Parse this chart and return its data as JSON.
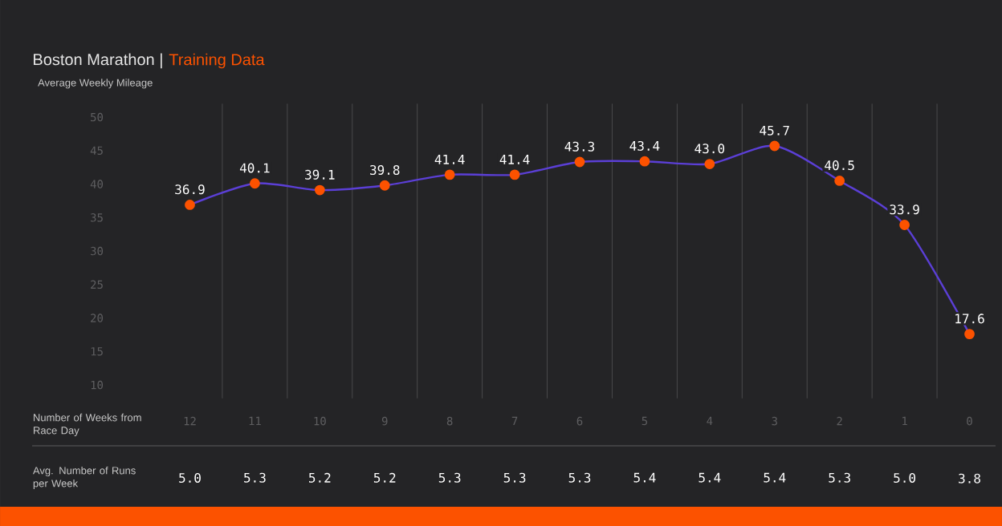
{
  "chart_data": [
    {
      "type": "line",
      "title": "Boston Marathon |",
      "subtitle": "Training Data",
      "ylabel": "Average Weekly Mileage",
      "xlabel": "Number of Weeks from Race Day",
      "categories": [
        "12",
        "11",
        "10",
        "9",
        "8",
        "7",
        "6",
        "5",
        "4",
        "3",
        "2",
        "1",
        "0"
      ],
      "series": [
        {
          "color": "#5b3fd6",
          "values": [
            36.9,
            40.1,
            39.1,
            39.8,
            41.4,
            41.4,
            43.3,
            43.4,
            43.0,
            45.7,
            40.5,
            33.9,
            17.6
          ],
          "value_labels": [
            "36.9",
            "40.1",
            "39.1",
            "39.8",
            "41.4",
            "41.4",
            "43.3",
            "43.4",
            "43.0",
            "45.7",
            "40.5",
            "33.9",
            "17.6"
          ]
        }
      ],
      "ylim": [
        8,
        52
      ],
      "yticks": [
        10,
        15,
        20,
        25,
        30,
        35,
        40,
        45,
        50
      ],
      "grid": "x",
      "marker": "circle"
    },
    {
      "type": "other",
      "ylabel": "Avg. Number of Runs per Week",
      "values": [
        5.0,
        5.3,
        5.2,
        5.2,
        5.3,
        5.3,
        5.3,
        5.4,
        5.4,
        5.4,
        5.3,
        5.0,
        3.8
      ],
      "value_labels": [
        "5.0",
        "5.3",
        "5.2",
        "5.2",
        "5.3",
        "5.3",
        "5.3",
        "5.4",
        "5.4",
        "5.4",
        "5.3",
        "5.0",
        "3.8"
      ]
    }
  ]
}
